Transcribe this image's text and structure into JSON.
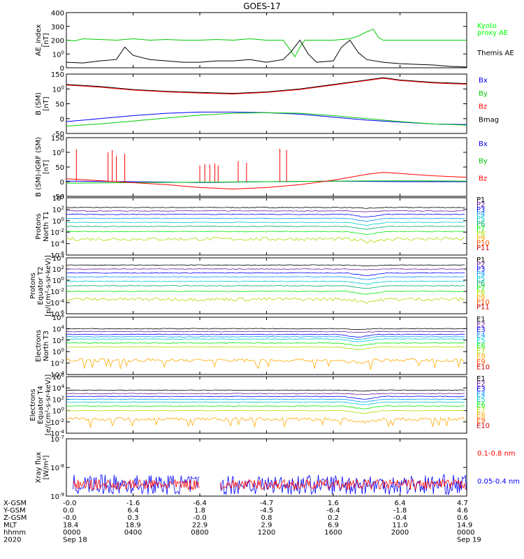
{
  "title": "GOES-17",
  "chart_data": [
    {
      "id": "ae",
      "type": "line",
      "ylabel": [
        "AE_index",
        "[nT]"
      ],
      "ylim": [
        0,
        400
      ],
      "yticks": [
        "0",
        "100",
        "200",
        "300",
        "400"
      ],
      "legend": [
        {
          "name": "Kyoto",
          "color": "#00ff00"
        },
        {
          "name": "proxy AE",
          "color": "#00ff00"
        },
        {
          "name": "Themis AE",
          "color": "#000000"
        }
      ],
      "series": [
        {
          "name": "Kyoto proxy AE",
          "color": "#00cc00",
          "x": [
            0,
            0.5,
            1,
            2,
            3,
            4,
            5,
            6,
            7,
            8,
            9,
            10,
            11,
            12,
            13,
            13.7,
            14,
            14.3,
            15,
            16,
            17,
            17.5,
            18,
            18.4,
            18.7,
            19,
            20,
            21,
            22,
            23,
            24
          ],
          "y": [
            200,
            195,
            210,
            205,
            200,
            210,
            200,
            205,
            200,
            200,
            205,
            200,
            210,
            200,
            200,
            80,
            150,
            200,
            200,
            200,
            210,
            230,
            260,
            280,
            220,
            200,
            200,
            200,
            200,
            200,
            200
          ]
        },
        {
          "name": "Themis AE",
          "color": "#000000",
          "x": [
            0,
            1,
            2,
            3,
            3.5,
            4,
            5,
            6,
            7,
            8,
            9,
            10,
            11,
            12,
            13,
            13.5,
            14,
            14.5,
            15,
            16,
            16.5,
            17,
            17.5,
            18,
            19,
            20,
            21,
            22,
            23,
            24
          ],
          "y": [
            40,
            35,
            50,
            60,
            150,
            90,
            60,
            50,
            40,
            40,
            50,
            50,
            60,
            40,
            60,
            120,
            200,
            100,
            40,
            50,
            150,
            200,
            110,
            60,
            40,
            30,
            25,
            20,
            10,
            5
          ]
        }
      ]
    },
    {
      "id": "bsm",
      "type": "line",
      "ylabel": [
        "B (SM)",
        "[nT]"
      ],
      "ylim": [
        -50,
        150
      ],
      "yticks": [
        "-50",
        "0",
        "50",
        "100",
        "150"
      ],
      "legend": [
        {
          "name": "Bx",
          "color": "#0000ff"
        },
        {
          "name": "By",
          "color": "#00cc00"
        },
        {
          "name": "Bz",
          "color": "#ff0000"
        },
        {
          "name": "Bmag",
          "color": "#000000"
        }
      ],
      "series": [
        {
          "name": "Bmag",
          "color": "#000000",
          "x": [
            0,
            2,
            4,
            6,
            8,
            10,
            12,
            14,
            16,
            18,
            19,
            20,
            22,
            24
          ],
          "y": [
            115,
            108,
            98,
            92,
            88,
            85,
            90,
            100,
            115,
            130,
            138,
            130,
            122,
            118
          ]
        },
        {
          "name": "Bz",
          "color": "#ff0000",
          "x": [
            0,
            2,
            4,
            6,
            8,
            10,
            12,
            14,
            16,
            18,
            19,
            20,
            22,
            24
          ],
          "y": [
            113,
            106,
            96,
            90,
            86,
            83,
            88,
            98,
            113,
            128,
            136,
            128,
            120,
            116
          ]
        },
        {
          "name": "Bx",
          "color": "#0000ff",
          "x": [
            0,
            2,
            4,
            6,
            8,
            10,
            12,
            14,
            16,
            18,
            20,
            22,
            24
          ],
          "y": [
            -10,
            0,
            10,
            18,
            22,
            22,
            20,
            15,
            5,
            -5,
            -12,
            -18,
            -20
          ]
        },
        {
          "name": "By",
          "color": "#00cc00",
          "x": [
            0,
            2,
            4,
            6,
            8,
            10,
            12,
            14,
            16,
            18,
            20,
            22,
            24
          ],
          "y": [
            -25,
            -18,
            -8,
            2,
            12,
            18,
            20,
            18,
            10,
            0,
            -10,
            -18,
            -22
          ]
        }
      ]
    },
    {
      "id": "bdiff",
      "type": "line",
      "ylabel": [
        "B (SM)-IGRF (SM)",
        "[nT]"
      ],
      "ylim": [
        -50,
        150
      ],
      "yticks": [
        "-50",
        "0",
        "50",
        "100",
        "150"
      ],
      "legend": [
        {
          "name": "Bx",
          "color": "#0000ff"
        },
        {
          "name": "By",
          "color": "#00cc00"
        },
        {
          "name": "Bz",
          "color": "#ff0000"
        }
      ],
      "series": [
        {
          "name": "Bx",
          "color": "#0000ff",
          "x": [
            0,
            4,
            8,
            12,
            16,
            20,
            24
          ],
          "y": [
            2,
            0,
            -3,
            0,
            2,
            0,
            0
          ]
        },
        {
          "name": "By",
          "color": "#00cc00",
          "x": [
            0,
            4,
            8,
            12,
            16,
            20,
            24
          ],
          "y": [
            -5,
            -3,
            -2,
            0,
            2,
            3,
            2
          ]
        },
        {
          "name": "Bz",
          "color": "#ff0000",
          "x": [
            0,
            1.5,
            3,
            4.5,
            6,
            8,
            10,
            12,
            14,
            16,
            17,
            18,
            19,
            20,
            22,
            24
          ],
          "y": [
            10,
            5,
            0,
            -5,
            -10,
            -20,
            -25,
            -20,
            -10,
            5,
            15,
            25,
            32,
            28,
            20,
            15
          ]
        }
      ],
      "spikes": {
        "color": "#ff0000",
        "x": [
          0.6,
          2.5,
          2.75,
          3.0,
          3.5,
          8.0,
          8.3,
          8.6,
          8.9,
          9.1,
          10.3,
          10.8,
          12.8,
          13.2
        ],
        "y": [
          110,
          100,
          108,
          88,
          95,
          55,
          60,
          58,
          62,
          55,
          70,
          65,
          112,
          108
        ]
      }
    },
    {
      "id": "pn",
      "type": "line",
      "log_y": true,
      "ylabel": [
        "Protons",
        "North T1"
      ],
      "ylim_exp": [
        -6,
        4
      ],
      "yticks": [
        "10-6",
        "10-4",
        "10-2",
        "100",
        "102",
        "104"
      ],
      "legend": [
        {
          "name": "P1",
          "color": "#000000"
        },
        {
          "name": "P2",
          "color": "#6a1b9a"
        },
        {
          "name": "P3",
          "color": "#0000ff"
        },
        {
          "name": "P4",
          "color": "#0099ff"
        },
        {
          "name": "P5",
          "color": "#00cccc"
        },
        {
          "name": "P6",
          "color": "#00aa66"
        },
        {
          "name": "P7",
          "color": "#00ee00"
        },
        {
          "name": "P8",
          "color": "#aadd00"
        },
        {
          "name": "P9",
          "color": "#ffaa00"
        },
        {
          "name": "P10",
          "color": "#ff5500"
        },
        {
          "name": "P11",
          "color": "#cc0000"
        }
      ],
      "levels": [
        2.3,
        1.7,
        1.1,
        0.4,
        -0.3,
        -1.0,
        -1.9,
        -3.2
      ],
      "dip_at": 18.0
    },
    {
      "id": "pe",
      "type": "line",
      "log_y": true,
      "ylabel": [
        "Protons",
        "Equator T2",
        "[p/(cm²-s-sr-keV)]"
      ],
      "ylim_exp": [
        -6,
        4
      ],
      "yticks": [
        "10-6",
        "10-4",
        "10-2",
        "100",
        "102",
        "104"
      ],
      "legend": [
        {
          "name": "P1",
          "color": "#000000"
        },
        {
          "name": "P2",
          "color": "#6a1b9a"
        },
        {
          "name": "P3",
          "color": "#0000ff"
        },
        {
          "name": "P4",
          "color": "#0099ff"
        },
        {
          "name": "P5",
          "color": "#00cccc"
        },
        {
          "name": "P6",
          "color": "#00aa66"
        },
        {
          "name": "P7",
          "color": "#00ee00"
        },
        {
          "name": "P8",
          "color": "#aadd00"
        },
        {
          "name": "P9",
          "color": "#ffaa00"
        },
        {
          "name": "P10",
          "color": "#ff5500"
        },
        {
          "name": "P11",
          "color": "#cc0000"
        }
      ],
      "levels": [
        2.7,
        2.0,
        1.3,
        0.6,
        -0.2,
        -1.0,
        -2.0,
        -3.4
      ],
      "dip_at": 18.0
    },
    {
      "id": "en",
      "type": "line",
      "log_y": true,
      "ylabel": [
        "Electrons",
        "North T3"
      ],
      "ylim_exp": [
        -4,
        6
      ],
      "yticks": [
        "10-4",
        "10-2",
        "100",
        "102",
        "104",
        "106"
      ],
      "legend": [
        {
          "name": "E1",
          "color": "#000000"
        },
        {
          "name": "E2",
          "color": "#6a1b9a"
        },
        {
          "name": "E3",
          "color": "#0000ff"
        },
        {
          "name": "E4",
          "color": "#0099ff"
        },
        {
          "name": "E5",
          "color": "#00cccc"
        },
        {
          "name": "E6",
          "color": "#00ee00"
        },
        {
          "name": "E7",
          "color": "#aadd00"
        },
        {
          "name": "E8",
          "color": "#ffaa00"
        },
        {
          "name": "E9",
          "color": "#ff5500"
        },
        {
          "name": "E10",
          "color": "#cc0000"
        }
      ],
      "levels": [
        4.0,
        3.5,
        3.0,
        2.6,
        2.2,
        1.5,
        0.8,
        -1.5
      ],
      "dip_at": 17.5
    },
    {
      "id": "ee",
      "type": "line",
      "log_y": true,
      "ylabel": [
        "Electrons",
        "Equator T4",
        "[e/(cm²-s-sr-keV)]"
      ],
      "ylim_exp": [
        -4,
        6
      ],
      "yticks": [
        "10-4",
        "10-2",
        "100",
        "102",
        "104",
        "106"
      ],
      "legend": [
        {
          "name": "E1",
          "color": "#000000"
        },
        {
          "name": "E2",
          "color": "#6a1b9a"
        },
        {
          "name": "E3",
          "color": "#0000ff"
        },
        {
          "name": "E4",
          "color": "#0099ff"
        },
        {
          "name": "E5",
          "color": "#00cccc"
        },
        {
          "name": "E6",
          "color": "#00ee00"
        },
        {
          "name": "E7",
          "color": "#aadd00"
        },
        {
          "name": "E8",
          "color": "#ffaa00"
        },
        {
          "name": "E9",
          "color": "#ff5500"
        },
        {
          "name": "E10",
          "color": "#cc0000"
        }
      ],
      "levels": [
        3.6,
        3.0,
        2.5,
        2.0,
        1.5,
        0.8,
        0.0,
        -1.5
      ],
      "dip_at": 17.8
    },
    {
      "id": "xray",
      "type": "line",
      "log_y": true,
      "ylabel": [
        "Xray flux",
        "[W/m²]"
      ],
      "ylim_exp": [
        -9,
        -7
      ],
      "yticks": [
        "10-9",
        "10-8",
        "10-7"
      ],
      "legend": [
        {
          "name": "0.1-0.8 nm",
          "color": "#ff0000"
        },
        {
          "name": "0.05-0.4 nm",
          "color": "#0000ff"
        }
      ],
      "gap": [
        8.0,
        9.2
      ],
      "series": [
        {
          "name": "0.1-0.8 nm",
          "color": "#ff0000",
          "level": -8.6
        },
        {
          "name": "0.05-0.4 nm",
          "color": "#0000ff",
          "level": -8.75
        }
      ]
    }
  ],
  "x_axis": {
    "range_hours": [
      0,
      24
    ],
    "row_labels": [
      "X-GSM",
      "Y-GSM",
      "Z-GSM",
      "MLT",
      "hhmm",
      "2020"
    ],
    "columns": [
      {
        "hour": 0,
        "values": [
          "-0.0",
          "0.0",
          "-0.0",
          "18.4",
          "0000",
          "Sep 18"
        ]
      },
      {
        "hour": 4,
        "values": [
          "-1.6",
          "6.4",
          "0.3",
          "18.9",
          "0400",
          ""
        ]
      },
      {
        "hour": 8,
        "values": [
          "-6.4",
          "1.8",
          "-0.0",
          "22.9",
          "0800",
          ""
        ]
      },
      {
        "hour": 12,
        "values": [
          "-4.7",
          "-4.5",
          "0.8",
          "2.9",
          "1200",
          ""
        ]
      },
      {
        "hour": 16,
        "values": [
          "1.6",
          "-6.4",
          "0.2",
          "6.9",
          "1600",
          ""
        ]
      },
      {
        "hour": 20,
        "values": [
          "6.4",
          "-1.8",
          "-0.4",
          "11.0",
          "2000",
          ""
        ]
      },
      {
        "hour": 24,
        "values": [
          "4.7",
          "4.6",
          "0.6",
          "14.9",
          "0000",
          "Sep 19"
        ]
      }
    ]
  }
}
